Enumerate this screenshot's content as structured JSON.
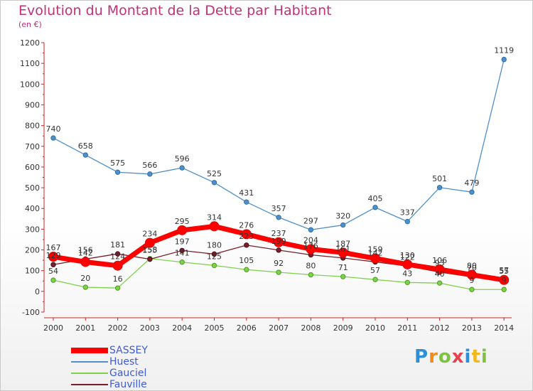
{
  "title": "Evolution du Montant de la Dette par Habitant",
  "subtitle": "(en €)",
  "chart_data": {
    "type": "line",
    "title": "Evolution du Montant de la Dette par Habitant",
    "ylabel": "(en €)",
    "x": [
      2000,
      2001,
      2002,
      2003,
      2004,
      2005,
      2006,
      2007,
      2008,
      2009,
      2010,
      2011,
      2012,
      2013,
      2014
    ],
    "ylim": [
      -100,
      1200
    ],
    "yticks": [
      -100,
      0,
      100,
      200,
      300,
      400,
      500,
      600,
      700,
      800,
      900,
      1000,
      1100,
      1200
    ],
    "grid": false,
    "legend_position": "bottom-left",
    "series": [
      {
        "name": "SASSEY",
        "color": "#ff0000",
        "values": [
          167,
          142,
          124,
          234,
          295,
          314,
          276,
          237,
          204,
          187,
          159,
          130,
          106,
          80,
          55
        ]
      },
      {
        "name": "Huest",
        "color": "#4f8fca",
        "values": [
          740,
          658,
          575,
          566,
          596,
          525,
          431,
          357,
          297,
          320,
          405,
          337,
          501,
          479,
          1119
        ]
      },
      {
        "name": "Gauciel",
        "color": "#7fd14b",
        "values": [
          54,
          20,
          16,
          158,
          141,
          125,
          105,
          92,
          80,
          71,
          57,
          43,
          40,
          9,
          9
        ]
      },
      {
        "name": "Fauville",
        "color": "#7a1e2a",
        "values": [
          129,
          156,
          181,
          155,
          197,
          180,
          223,
          199,
          176,
          161,
          142,
          122,
          93,
          70,
          57
        ]
      }
    ]
  },
  "legend": [
    {
      "label": "SASSEY",
      "color": "#ff0000"
    },
    {
      "label": "Huest",
      "color": "#4f8fca"
    },
    {
      "label": "Gauciel",
      "color": "#7fd14b"
    },
    {
      "label": "Fauville",
      "color": "#7a1e2a"
    }
  ],
  "logo": {
    "letters": [
      "P",
      "r",
      "o",
      "x",
      "i",
      "t",
      "i"
    ],
    "colors": [
      "#2d8fd8",
      "#f08a1c",
      "#7fc241",
      "#e8434d",
      "#2d8fd8",
      "#f0b81c",
      "#7fc241"
    ]
  }
}
